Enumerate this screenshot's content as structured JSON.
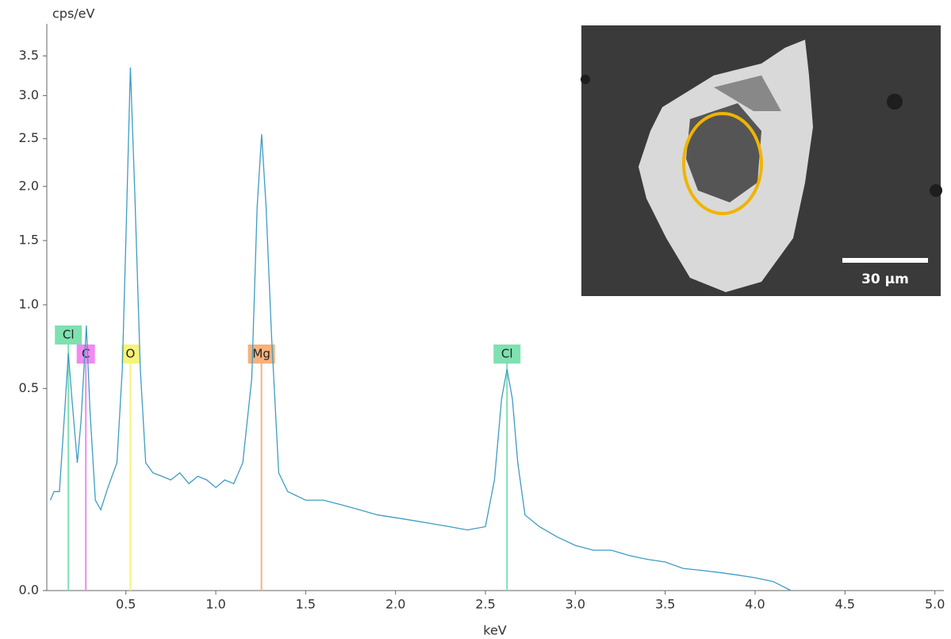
{
  "chart_data": {
    "type": "line",
    "scale": "sqrt",
    "xlabel": "keV",
    "ylabel": "cps/eV",
    "xlim": [
      0.06,
      5.05
    ],
    "ylim": [
      0,
      3.9
    ],
    "xticks": [
      0.5,
      {
        "value": 1,
        "label": "1.0"
      },
      1.5,
      {
        "value": 2,
        "label": "2.0"
      },
      2.5,
      {
        "value": 3,
        "label": "3.0"
      },
      3.5,
      {
        "value": 4,
        "label": "4.0"
      },
      4.5,
      {
        "value": 5,
        "label": "5.0"
      }
    ],
    "yticks": [
      {
        "value": 0,
        "label": "0.0"
      },
      0.5,
      {
        "value": 1,
        "label": "1.0"
      },
      1.5,
      {
        "value": 2,
        "label": "2.0"
      },
      2.5,
      {
        "value": 3,
        "label": "3.0"
      },
      3.5
    ],
    "x": [
      0.08,
      0.1,
      0.13,
      0.16,
      0.18,
      0.2,
      0.23,
      0.25,
      0.28,
      0.3,
      0.33,
      0.36,
      0.4,
      0.45,
      0.48,
      0.5,
      0.525,
      0.55,
      0.58,
      0.61,
      0.65,
      0.7,
      0.75,
      0.8,
      0.85,
      0.9,
      0.95,
      1.0,
      1.05,
      1.1,
      1.15,
      1.2,
      1.23,
      1.255,
      1.28,
      1.31,
      1.35,
      1.4,
      1.45,
      1.5,
      1.6,
      1.7,
      1.8,
      1.9,
      2.0,
      2.1,
      2.2,
      2.3,
      2.4,
      2.5,
      2.55,
      2.59,
      2.62,
      2.65,
      2.68,
      2.72,
      2.8,
      2.9,
      3.0,
      3.1,
      3.2,
      3.3,
      3.4,
      3.5,
      3.6,
      3.7,
      3.8,
      3.9,
      4.0,
      4.1,
      4.2
    ],
    "series": [
      {
        "color": "#3e9cc4",
        "values": [
          0.1,
          0.12,
          0.12,
          0.4,
          0.69,
          0.45,
          0.2,
          0.35,
          0.86,
          0.4,
          0.1,
          0.08,
          0.13,
          0.2,
          0.6,
          1.5,
          3.35,
          1.9,
          0.6,
          0.2,
          0.17,
          0.16,
          0.15,
          0.17,
          0.14,
          0.16,
          0.15,
          0.13,
          0.15,
          0.14,
          0.2,
          0.55,
          1.8,
          2.55,
          1.8,
          0.8,
          0.17,
          0.12,
          0.11,
          0.1,
          0.1,
          0.09,
          0.08,
          0.07,
          0.065,
          0.06,
          0.055,
          0.05,
          0.045,
          0.05,
          0.15,
          0.45,
          0.6,
          0.45,
          0.2,
          0.07,
          0.05,
          0.035,
          0.025,
          0.02,
          0.02,
          0.015,
          0.012,
          0.01,
          0.006,
          0.005,
          0.004,
          0.003,
          0.002,
          0.001,
          0
        ]
      }
    ],
    "annotations": [
      {
        "label": "Cl",
        "x": 0.18,
        "color": "#7fe0b0"
      },
      {
        "label": "C",
        "x": 0.277,
        "color": "#f08af0"
      },
      {
        "label": "O",
        "x": 0.525,
        "color": "#f6f27a"
      },
      {
        "label": "Mg",
        "x": 1.254,
        "color": "#f4b27e"
      },
      {
        "label": "Cl",
        "x": 2.62,
        "color": "#7fe0b0"
      }
    ],
    "inset": {
      "scale_bar": "30 µm"
    }
  }
}
